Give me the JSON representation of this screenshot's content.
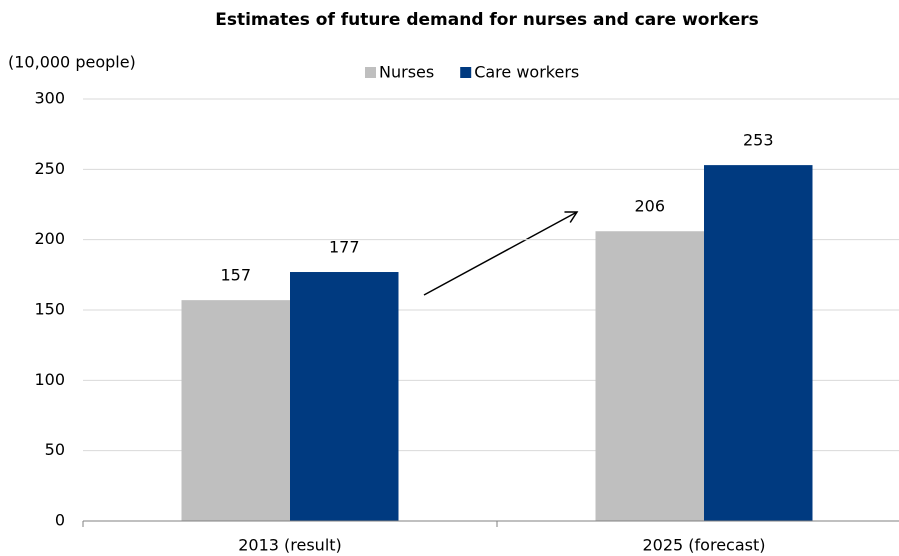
{
  "chart_data": {
    "type": "bar",
    "title": "Estimates of future demand for nurses and care workers",
    "y_axis_label": "(10,000 people)",
    "categories": [
      "2013 (result)",
      "2025 (forecast)"
    ],
    "series": [
      {
        "name": "Nurses",
        "color": "#bfbfbf",
        "values": [
          157,
          206
        ]
      },
      {
        "name": "Care workers",
        "color": "#003a80",
        "values": [
          177,
          253
        ]
      }
    ],
    "ylim": [
      0,
      300
    ],
    "yticks": [
      0,
      50,
      100,
      150,
      200,
      250,
      300
    ],
    "grid": true,
    "legend": "top"
  }
}
